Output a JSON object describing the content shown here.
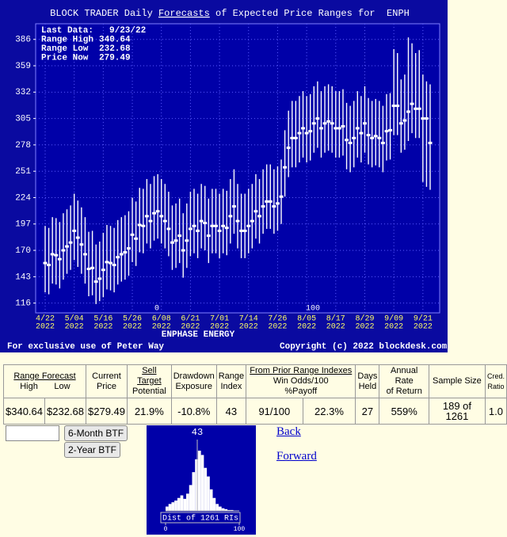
{
  "chart_data": [
    {
      "type": "range",
      "title_parts": [
        "BLOCK TRADER Daily",
        "Forecasts",
        "of Expected Price Ranges for  ENPH"
      ],
      "info": [
        {
          "label": "Last Data:",
          "value": "9/23/22"
        },
        {
          "label": "Range High",
          "value": 340.64
        },
        {
          "label": "Range Low",
          "value": 232.68
        },
        {
          "label": "Price Now",
          "value": 279.49
        }
      ],
      "x_label": "ENPHASE ENERGY",
      "footer_left": "For exclusive use of Peter Way",
      "footer_right": "Copyright (c) 2022 blockdesk.com",
      "markers": [
        "0",
        "100"
      ],
      "categories": [
        "4/22",
        null,
        null,
        null,
        null,
        null,
        null,
        null,
        "5/04",
        null,
        null,
        null,
        null,
        null,
        null,
        null,
        "5/16",
        null,
        null,
        null,
        null,
        null,
        null,
        null,
        "5/26",
        null,
        null,
        null,
        null,
        null,
        null,
        null,
        "6/08",
        null,
        null,
        null,
        null,
        null,
        null,
        null,
        "6/21",
        null,
        null,
        null,
        null,
        null,
        null,
        null,
        "7/01",
        null,
        null,
        null,
        null,
        null,
        null,
        null,
        "7/14",
        null,
        null,
        null,
        null,
        null,
        null,
        null,
        "7/26",
        null,
        null,
        null,
        null,
        null,
        null,
        null,
        "8/05",
        null,
        null,
        null,
        null,
        null,
        null,
        null,
        "8/17",
        null,
        null,
        null,
        null,
        null,
        null,
        null,
        "8/29",
        null,
        null,
        null,
        null,
        null,
        null,
        null,
        "9/09",
        null,
        null,
        null,
        null,
        null,
        null,
        null,
        "9/21",
        null,
        null
      ],
      "category_years": [
        "2022",
        null,
        null,
        null,
        null,
        null,
        null,
        null,
        "2022",
        null,
        null,
        null,
        null,
        null,
        null,
        null,
        "2022",
        null,
        null,
        null,
        null,
        null,
        null,
        null,
        "2022",
        null,
        null,
        null,
        null,
        null,
        null,
        null,
        "2022",
        null,
        null,
        null,
        null,
        null,
        null,
        null,
        "2022",
        null,
        null,
        null,
        null,
        null,
        null,
        null,
        "2022",
        null,
        null,
        null,
        null,
        null,
        null,
        null,
        "2022",
        null,
        null,
        null,
        null,
        null,
        null,
        null,
        "2022",
        null,
        null,
        null,
        null,
        null,
        null,
        null,
        "2022",
        null,
        null,
        null,
        null,
        null,
        null,
        null,
        "2022",
        null,
        null,
        null,
        null,
        null,
        null,
        null,
        "2022",
        null,
        null,
        null,
        null,
        null,
        null,
        null,
        "2022",
        null,
        null,
        null,
        null,
        null,
        null,
        null,
        "2022",
        null,
        null
      ],
      "high": [
        195,
        193,
        204,
        203,
        199,
        208,
        212,
        216,
        228,
        221,
        214,
        204,
        189,
        190,
        176,
        179,
        188,
        196,
        195,
        193,
        201,
        204,
        206,
        210,
        224,
        220,
        234,
        233,
        243,
        238,
        246,
        248,
        243,
        238,
        230,
        216,
        218,
        223,
        208,
        218,
        230,
        233,
        228,
        238,
        236,
        223,
        233,
        233,
        228,
        233,
        231,
        243,
        253,
        238,
        228,
        228,
        233,
        238,
        248,
        243,
        253,
        258,
        258,
        253,
        256,
        263,
        293,
        313,
        323,
        323,
        328,
        333,
        328,
        330,
        338,
        343,
        333,
        338,
        340,
        338,
        333,
        333,
        335,
        321,
        318,
        323,
        333,
        328,
        338,
        326,
        323,
        325,
        323,
        318,
        330,
        331,
        376,
        372,
        345,
        350,
        388,
        382,
        372,
        375,
        350,
        343,
        340
      ],
      "low": [
        127,
        125,
        136,
        135,
        131,
        140,
        146,
        150,
        160,
        153,
        146,
        136,
        123,
        124,
        115,
        118,
        122,
        130,
        129,
        127,
        135,
        138,
        140,
        144,
        158,
        154,
        168,
        167,
        177,
        172,
        180,
        182,
        177,
        172,
        164,
        150,
        152,
        157,
        142,
        152,
        164,
        167,
        162,
        172,
        170,
        157,
        167,
        167,
        162,
        167,
        165,
        177,
        187,
        172,
        162,
        162,
        167,
        172,
        182,
        177,
        187,
        192,
        192,
        187,
        190,
        197,
        225,
        245,
        255,
        255,
        260,
        265,
        260,
        262,
        270,
        275,
        265,
        270,
        272,
        270,
        265,
        265,
        267,
        253,
        250,
        255,
        265,
        260,
        270,
        258,
        255,
        257,
        255,
        250,
        262,
        263,
        288,
        288,
        270,
        273,
        282,
        290,
        285,
        285,
        240,
        235,
        232
      ],
      "close": [
        157,
        155,
        166,
        165,
        161,
        170,
        174,
        178,
        190,
        183,
        176,
        166,
        151,
        152,
        138,
        141,
        150,
        158,
        157,
        155,
        163,
        166,
        168,
        172,
        186,
        182,
        196,
        195,
        205,
        200,
        208,
        210,
        205,
        200,
        192,
        178,
        180,
        185,
        170,
        180,
        192,
        195,
        190,
        200,
        198,
        185,
        195,
        195,
        190,
        195,
        193,
        205,
        215,
        200,
        190,
        190,
        195,
        200,
        210,
        205,
        215,
        220,
        220,
        215,
        218,
        225,
        255,
        275,
        285,
        285,
        290,
        295,
        290,
        292,
        300,
        305,
        295,
        300,
        302,
        300,
        295,
        295,
        297,
        283,
        280,
        285,
        295,
        290,
        300,
        288,
        285,
        287,
        285,
        280,
        292,
        293,
        318,
        318,
        300,
        303,
        312,
        320,
        315,
        315,
        305,
        305,
        280
      ],
      "color": "#ffffff",
      "ylim": [
        106,
        402
      ],
      "yticks": [
        116,
        143,
        170,
        197,
        224,
        251,
        278,
        305,
        332,
        359,
        386
      ],
      "grid": true
    },
    {
      "type": "histogram",
      "marker": 43,
      "x_label": "Dist of 1261 RIs",
      "bins": [
        0,
        4,
        8,
        12,
        16,
        20,
        24,
        28,
        32,
        36,
        40,
        44,
        48,
        52,
        56,
        60,
        64,
        68,
        72,
        76,
        80,
        84,
        88,
        92,
        96,
        100
      ],
      "counts": [
        5,
        8,
        10,
        12,
        15,
        18,
        14,
        20,
        30,
        45,
        60,
        70,
        65,
        50,
        40,
        25,
        15,
        8,
        5,
        3,
        2,
        1,
        1,
        0,
        0
      ],
      "color": "#ffffff",
      "xlim": [
        0,
        100
      ],
      "xticks": [
        0,
        100
      ]
    }
  ],
  "table": {
    "head": [
      "Range Forecast",
      "High",
      "Low",
      "Current",
      "Price",
      "Sell Target",
      "Potential",
      "Drawdown",
      "Exposure",
      "Range",
      "Index",
      "From Prior Range Indexes",
      "Win Odds/100",
      "%Payoff",
      "Days",
      "Held",
      "Annual Rate",
      "of Return",
      "Sample Size",
      "Cred.",
      "Ratio"
    ],
    "row": [
      "$340.64",
      "$232.68",
      "$279.49",
      "21.9%",
      "-10.8%",
      "43",
      "91/100",
      "22.3%",
      "27",
      "559%",
      "189 of 1261",
      "1.0"
    ]
  },
  "controls": {
    "button_6m": "6-Month BTF",
    "button_2y": "2-Year BTF",
    "back": "Back",
    "forward": "Forward"
  }
}
